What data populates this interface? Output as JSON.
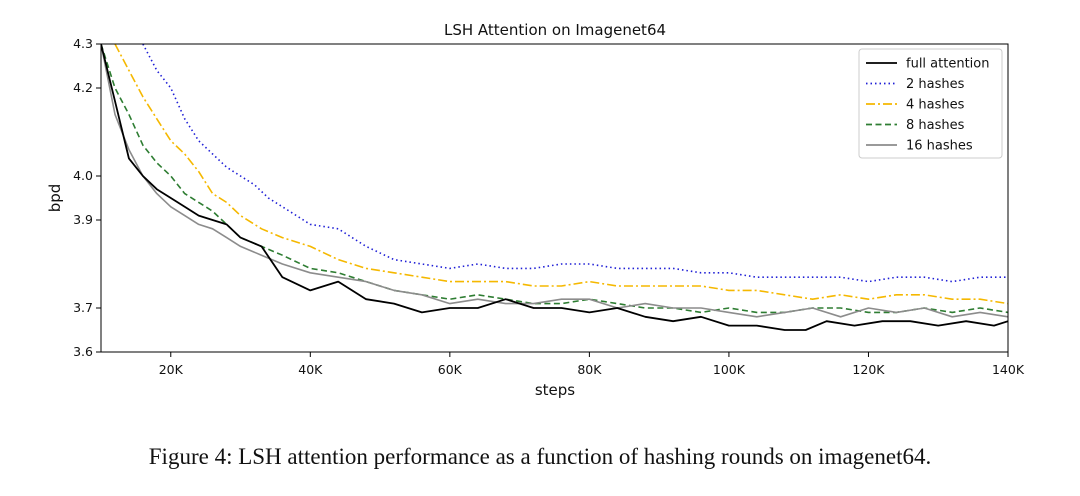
{
  "caption": "Figure 4: LSH attention performance as a function of hashing rounds on imagenet64.",
  "chart_data": {
    "type": "line",
    "title": "LSH Attention on Imagenet64",
    "xlabel": "steps",
    "ylabel": "bpd",
    "xlim": [
      10000,
      140000
    ],
    "ylim": [
      3.6,
      4.3
    ],
    "xticks": [
      {
        "value": 20000,
        "label": "20K"
      },
      {
        "value": 40000,
        "label": "40K"
      },
      {
        "value": 60000,
        "label": "60K"
      },
      {
        "value": 80000,
        "label": "80K"
      },
      {
        "value": 100000,
        "label": "100K"
      },
      {
        "value": 120000,
        "label": "120K"
      },
      {
        "value": 140000,
        "label": "140K"
      }
    ],
    "yticks": [
      {
        "value": 3.6,
        "label": "3.6"
      },
      {
        "value": 3.7,
        "label": "3.7"
      },
      {
        "value": 3.9,
        "label": "3.9"
      },
      {
        "value": 4.0,
        "label": "4.0"
      },
      {
        "value": 4.2,
        "label": "4.2"
      },
      {
        "value": 4.3,
        "label": "4.3"
      }
    ],
    "grid": false,
    "legend_position": "top-right",
    "series": [
      {
        "name": "full attention",
        "color": "#000000",
        "style": "solid",
        "x": [
          10000,
          12000,
          14000,
          16000,
          18000,
          20000,
          22000,
          24000,
          26000,
          28000,
          30000,
          33000,
          36000,
          40000,
          44000,
          48000,
          52000,
          56000,
          60000,
          64000,
          68000,
          72000,
          76000,
          80000,
          84000,
          88000,
          92000,
          96000,
          100000,
          104000,
          108000,
          111000,
          114000,
          118000,
          122000,
          126000,
          130000,
          134000,
          138000,
          140000
        ],
        "y": [
          4.3,
          4.17,
          4.04,
          4.0,
          3.97,
          3.95,
          3.93,
          3.91,
          3.9,
          3.89,
          3.86,
          3.84,
          3.77,
          3.74,
          3.76,
          3.72,
          3.71,
          3.69,
          3.7,
          3.7,
          3.72,
          3.7,
          3.7,
          3.69,
          3.7,
          3.68,
          3.67,
          3.68,
          3.66,
          3.66,
          3.65,
          3.65,
          3.67,
          3.66,
          3.67,
          3.67,
          3.66,
          3.67,
          3.66,
          3.67
        ]
      },
      {
        "name": "2 hashes",
        "color": "#1f1fd6",
        "style": "dotted",
        "x": [
          16000,
          18000,
          20000,
          22000,
          24000,
          26000,
          28000,
          30000,
          32000,
          34000,
          36000,
          38000,
          40000,
          44000,
          48000,
          52000,
          56000,
          60000,
          64000,
          68000,
          72000,
          76000,
          80000,
          84000,
          88000,
          92000,
          96000,
          100000,
          104000,
          108000,
          112000,
          116000,
          120000,
          124000,
          128000,
          132000,
          136000,
          140000
        ],
        "y": [
          4.3,
          4.24,
          4.2,
          4.13,
          4.08,
          4.05,
          4.02,
          4.0,
          3.98,
          3.95,
          3.93,
          3.91,
          3.89,
          3.88,
          3.84,
          3.81,
          3.8,
          3.79,
          3.8,
          3.79,
          3.79,
          3.8,
          3.8,
          3.79,
          3.79,
          3.79,
          3.78,
          3.78,
          3.77,
          3.77,
          3.77,
          3.77,
          3.76,
          3.77,
          3.77,
          3.76,
          3.77,
          3.77
        ]
      },
      {
        "name": "4 hashes",
        "color": "#f5b800",
        "style": "dashdot",
        "x": [
          12000,
          14000,
          16000,
          18000,
          20000,
          22000,
          24000,
          26000,
          28000,
          30000,
          33000,
          36000,
          40000,
          44000,
          48000,
          52000,
          56000,
          60000,
          64000,
          68000,
          72000,
          76000,
          80000,
          84000,
          88000,
          92000,
          96000,
          100000,
          104000,
          108000,
          112000,
          116000,
          120000,
          124000,
          128000,
          132000,
          136000,
          140000
        ],
        "y": [
          4.3,
          4.24,
          4.18,
          4.13,
          4.08,
          4.05,
          4.01,
          3.96,
          3.94,
          3.91,
          3.88,
          3.86,
          3.84,
          3.81,
          3.79,
          3.78,
          3.77,
          3.76,
          3.76,
          3.76,
          3.75,
          3.75,
          3.76,
          3.75,
          3.75,
          3.75,
          3.75,
          3.74,
          3.74,
          3.73,
          3.72,
          3.73,
          3.72,
          3.73,
          3.73,
          3.72,
          3.72,
          3.71
        ]
      },
      {
        "name": "8 hashes",
        "color": "#2e7d32",
        "style": "dashed",
        "x": [
          10000,
          12000,
          14000,
          16000,
          18000,
          20000,
          22000,
          24000,
          26000,
          28000,
          30000,
          33000,
          36000,
          40000,
          44000,
          48000,
          52000,
          56000,
          60000,
          64000,
          68000,
          72000,
          76000,
          80000,
          84000,
          88000,
          92000,
          96000,
          100000,
          104000,
          108000,
          112000,
          116000,
          120000,
          124000,
          128000,
          132000,
          136000,
          140000
        ],
        "y": [
          4.3,
          4.2,
          4.14,
          4.07,
          4.03,
          4.0,
          3.96,
          3.94,
          3.92,
          3.89,
          3.86,
          3.84,
          3.82,
          3.79,
          3.78,
          3.76,
          3.74,
          3.73,
          3.72,
          3.73,
          3.72,
          3.71,
          3.71,
          3.72,
          3.71,
          3.7,
          3.7,
          3.69,
          3.7,
          3.69,
          3.69,
          3.7,
          3.7,
          3.69,
          3.69,
          3.7,
          3.69,
          3.7,
          3.69
        ]
      },
      {
        "name": "16 hashes",
        "color": "#8c8c8c",
        "style": "solid",
        "x": [
          10000,
          12000,
          14000,
          16000,
          18000,
          20000,
          22000,
          24000,
          26000,
          28000,
          30000,
          33000,
          36000,
          40000,
          44000,
          48000,
          52000,
          56000,
          60000,
          64000,
          68000,
          72000,
          76000,
          80000,
          84000,
          88000,
          92000,
          96000,
          100000,
          104000,
          108000,
          112000,
          116000,
          120000,
          124000,
          128000,
          132000,
          136000,
          140000
        ],
        "y": [
          4.3,
          4.14,
          4.06,
          4.0,
          3.96,
          3.93,
          3.91,
          3.89,
          3.88,
          3.86,
          3.84,
          3.82,
          3.8,
          3.78,
          3.77,
          3.76,
          3.74,
          3.73,
          3.71,
          3.72,
          3.71,
          3.71,
          3.72,
          3.72,
          3.7,
          3.71,
          3.7,
          3.7,
          3.69,
          3.68,
          3.69,
          3.7,
          3.68,
          3.7,
          3.69,
          3.7,
          3.68,
          3.69,
          3.68
        ]
      }
    ]
  }
}
